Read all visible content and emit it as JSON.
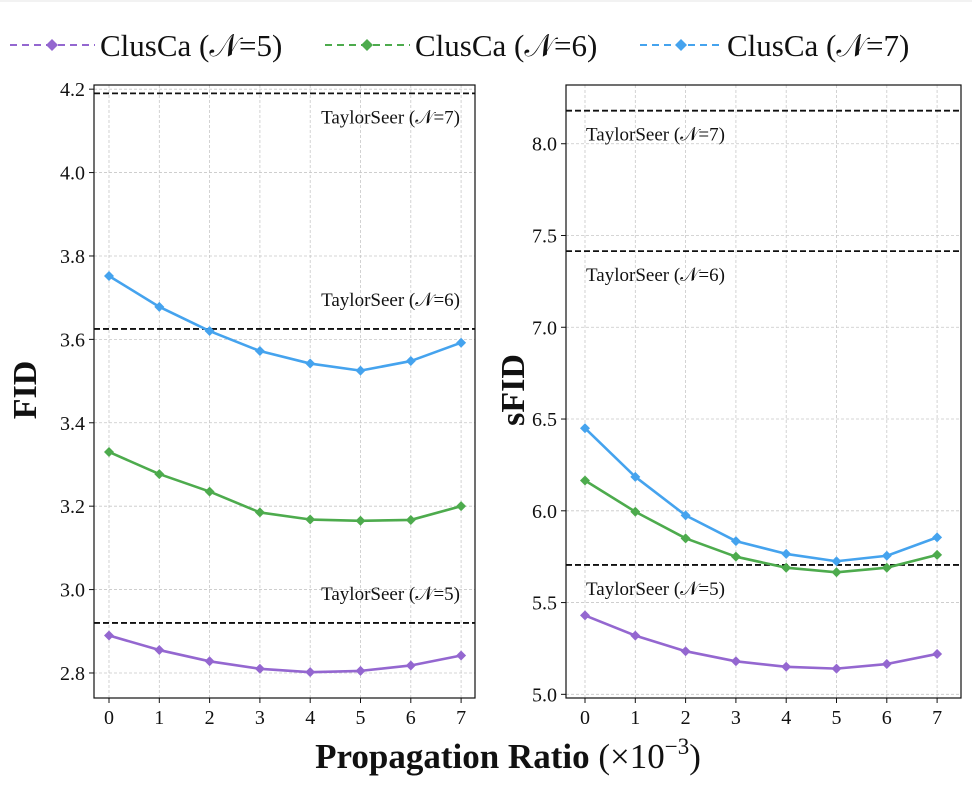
{
  "chart_data": [
    {
      "type": "line",
      "ylabel": "FID",
      "xlabel": "Propagation Ratio (×10⁻³)",
      "x": [
        0,
        1,
        2,
        3,
        4,
        5,
        6,
        7
      ],
      "xticks": [
        "0",
        "1",
        "2",
        "3",
        "4",
        "5",
        "6",
        "7"
      ],
      "ylim": [
        2.74,
        4.21
      ],
      "yticks": [
        2.8,
        3.0,
        3.2,
        3.4,
        3.6,
        3.8,
        4.0,
        4.2
      ],
      "ytick_labels": [
        "2.8",
        "3.0",
        "3.2",
        "3.4",
        "3.6",
        "3.8",
        "4.0",
        "4.2"
      ],
      "series": [
        {
          "name": "ClusCa (𝒩=5)",
          "color": "#9467d0",
          "values": [
            2.89,
            2.855,
            2.828,
            2.81,
            2.802,
            2.805,
            2.818,
            2.842
          ]
        },
        {
          "name": "ClusCa (𝒩=6)",
          "color": "#4dab4d",
          "values": [
            3.33,
            3.277,
            3.235,
            3.185,
            3.168,
            3.165,
            3.167,
            3.2
          ]
        },
        {
          "name": "ClusCa (𝒩=7)",
          "color": "#45a3ee",
          "values": [
            3.752,
            3.678,
            3.62,
            3.572,
            3.542,
            3.525,
            3.548,
            3.592
          ]
        }
      ],
      "reference_lines": [
        {
          "label": "TaylorSeer (𝒩=7)",
          "value": 4.19,
          "label_position": "below"
        },
        {
          "label": "TaylorSeer (𝒩=6)",
          "value": 3.625,
          "label_position": "above"
        },
        {
          "label": "TaylorSeer (𝒩=5)",
          "value": 2.92,
          "label_position": "above"
        }
      ],
      "grid": true
    },
    {
      "type": "line",
      "ylabel": "sFID",
      "xlabel": "Propagation Ratio (×10⁻³)",
      "x": [
        0,
        1,
        2,
        3,
        4,
        5,
        6,
        7
      ],
      "xticks": [
        "0",
        "1",
        "2",
        "3",
        "4",
        "5",
        "6",
        "7"
      ],
      "ylim": [
        4.98,
        8.32
      ],
      "yticks": [
        5.0,
        5.5,
        6.0,
        6.5,
        7.0,
        7.5,
        8.0
      ],
      "ytick_labels": [
        "5.0",
        "5.5",
        "6.0",
        "6.5",
        "7.0",
        "7.5",
        "8.0"
      ],
      "series": [
        {
          "name": "ClusCa (𝒩=5)",
          "color": "#9467d0",
          "values": [
            5.43,
            5.32,
            5.235,
            5.18,
            5.15,
            5.14,
            5.165,
            5.22
          ]
        },
        {
          "name": "ClusCa (𝒩=6)",
          "color": "#4dab4d",
          "values": [
            6.165,
            5.995,
            5.85,
            5.75,
            5.69,
            5.665,
            5.69,
            5.76
          ]
        },
        {
          "name": "ClusCa (𝒩=7)",
          "color": "#45a3ee",
          "values": [
            6.45,
            6.185,
            5.975,
            5.835,
            5.765,
            5.725,
            5.755,
            5.855
          ]
        }
      ],
      "reference_lines": [
        {
          "label": "TaylorSeer (𝒩=7)",
          "value": 8.18,
          "label_position": "below"
        },
        {
          "label": "TaylorSeer (𝒩=6)",
          "value": 7.415,
          "label_position": "below"
        },
        {
          "label": "TaylorSeer (𝒩=5)",
          "value": 5.705,
          "label_position": "below"
        }
      ],
      "grid": true
    }
  ],
  "legend": {
    "placement": "top",
    "items": [
      {
        "label": "ClusCa (𝒩=5)",
        "color": "#9467d0"
      },
      {
        "label": "ClusCa (𝒩=6)",
        "color": "#4dab4d"
      },
      {
        "label": "ClusCa (𝒩=7)",
        "color": "#45a3ee"
      }
    ]
  },
  "shared_xlabel": {
    "bold": "Propagation Ratio",
    "unit": "(×10",
    "exponent": "−3",
    "close": ")"
  }
}
